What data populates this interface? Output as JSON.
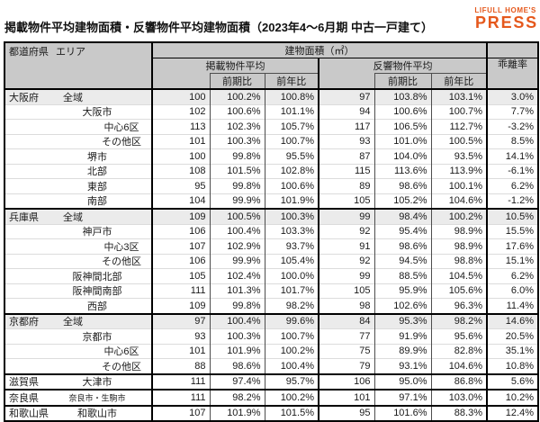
{
  "page": {
    "title": "掲載物件平均建物面積・反響物件平均建物面積（2023年4～6月期 中古一戸建て）",
    "logo": {
      "top": "LIFULL HOME'S",
      "bottom": "PRESS",
      "color": "#E5581C"
    }
  },
  "colors": {
    "header_bg": "#c9c9c9",
    "highlight_row_bg": "#ebebeb",
    "border_major": "#000000",
    "border_minor": "#4d4d4d",
    "row_divider": "#dcdcdc",
    "accent_orange": "#E5581C"
  },
  "chart_data": {
    "type": "table",
    "title": "掲載物件平均建物面積・反響物件平均建物面積（2023年4～6月期 中古一戸建て）",
    "headers": {
      "pref": "都道府県",
      "area": "エリア",
      "unit": "建物面積（㎡）",
      "listed_group": "掲載物件平均",
      "inquiry_group": "反響物件平均",
      "qoq": "前期比",
      "yoy": "前年比",
      "divergence": "乖離率"
    },
    "rows": [
      {
        "pref": "大阪府",
        "area": "全域",
        "indent": 0,
        "highlight": true,
        "group_start": true,
        "listed": "100",
        "listed_qoq": "100.2%",
        "listed_yoy": "100.8%",
        "inquiry": "97",
        "inquiry_qoq": "103.8%",
        "inquiry_yoy": "103.1%",
        "divergence": "3.0%"
      },
      {
        "pref": "",
        "area": "大阪市",
        "indent": 1,
        "highlight": false,
        "group_start": false,
        "listed": "102",
        "listed_qoq": "100.6%",
        "listed_yoy": "101.1%",
        "inquiry": "94",
        "inquiry_qoq": "100.6%",
        "inquiry_yoy": "100.7%",
        "divergence": "7.7%"
      },
      {
        "pref": "",
        "area": "中心6区",
        "indent": 2,
        "highlight": false,
        "group_start": false,
        "listed": "113",
        "listed_qoq": "102.3%",
        "listed_yoy": "105.7%",
        "inquiry": "117",
        "inquiry_qoq": "106.5%",
        "inquiry_yoy": "112.7%",
        "divergence": "-3.2%"
      },
      {
        "pref": "",
        "area": "その他区",
        "indent": 2,
        "highlight": false,
        "group_start": false,
        "listed": "101",
        "listed_qoq": "100.3%",
        "listed_yoy": "100.7%",
        "inquiry": "93",
        "inquiry_qoq": "101.0%",
        "inquiry_yoy": "100.5%",
        "divergence": "8.5%"
      },
      {
        "pref": "",
        "area": "堺市",
        "indent": 1,
        "highlight": false,
        "group_start": false,
        "listed": "100",
        "listed_qoq": "99.8%",
        "listed_yoy": "95.5%",
        "inquiry": "87",
        "inquiry_qoq": "104.0%",
        "inquiry_yoy": "93.5%",
        "divergence": "14.1%"
      },
      {
        "pref": "",
        "area": "北部",
        "indent": 1,
        "highlight": false,
        "group_start": false,
        "listed": "108",
        "listed_qoq": "101.5%",
        "listed_yoy": "102.8%",
        "inquiry": "115",
        "inquiry_qoq": "113.6%",
        "inquiry_yoy": "113.9%",
        "divergence": "-6.1%"
      },
      {
        "pref": "",
        "area": "東部",
        "indent": 1,
        "highlight": false,
        "group_start": false,
        "listed": "95",
        "listed_qoq": "99.8%",
        "listed_yoy": "100.6%",
        "inquiry": "89",
        "inquiry_qoq": "98.6%",
        "inquiry_yoy": "100.1%",
        "divergence": "6.2%"
      },
      {
        "pref": "",
        "area": "南部",
        "indent": 1,
        "highlight": false,
        "group_start": false,
        "listed": "104",
        "listed_qoq": "99.9%",
        "listed_yoy": "101.9%",
        "inquiry": "105",
        "inquiry_qoq": "105.2%",
        "inquiry_yoy": "104.6%",
        "divergence": "-1.2%"
      },
      {
        "pref": "兵庫県",
        "area": "全域",
        "indent": 0,
        "highlight": true,
        "group_start": true,
        "listed": "109",
        "listed_qoq": "100.5%",
        "listed_yoy": "100.3%",
        "inquiry": "99",
        "inquiry_qoq": "98.4%",
        "inquiry_yoy": "100.2%",
        "divergence": "10.5%"
      },
      {
        "pref": "",
        "area": "神戸市",
        "indent": 1,
        "highlight": false,
        "group_start": false,
        "listed": "106",
        "listed_qoq": "100.4%",
        "listed_yoy": "103.3%",
        "inquiry": "92",
        "inquiry_qoq": "95.4%",
        "inquiry_yoy": "98.9%",
        "divergence": "15.5%"
      },
      {
        "pref": "",
        "area": "中心3区",
        "indent": 2,
        "highlight": false,
        "group_start": false,
        "listed": "107",
        "listed_qoq": "102.9%",
        "listed_yoy": "93.7%",
        "inquiry": "91",
        "inquiry_qoq": "98.6%",
        "inquiry_yoy": "98.9%",
        "divergence": "17.6%"
      },
      {
        "pref": "",
        "area": "その他区",
        "indent": 2,
        "highlight": false,
        "group_start": false,
        "listed": "106",
        "listed_qoq": "99.9%",
        "listed_yoy": "105.4%",
        "inquiry": "92",
        "inquiry_qoq": "94.5%",
        "inquiry_yoy": "98.8%",
        "divergence": "15.1%"
      },
      {
        "pref": "",
        "area": "阪神間北部",
        "indent": 1,
        "highlight": false,
        "group_start": false,
        "listed": "105",
        "listed_qoq": "102.4%",
        "listed_yoy": "100.0%",
        "inquiry": "99",
        "inquiry_qoq": "88.5%",
        "inquiry_yoy": "104.5%",
        "divergence": "6.2%"
      },
      {
        "pref": "",
        "area": "阪神間南部",
        "indent": 1,
        "highlight": false,
        "group_start": false,
        "listed": "111",
        "listed_qoq": "101.3%",
        "listed_yoy": "101.7%",
        "inquiry": "105",
        "inquiry_qoq": "95.9%",
        "inquiry_yoy": "105.6%",
        "divergence": "6.0%"
      },
      {
        "pref": "",
        "area": "西部",
        "indent": 1,
        "highlight": false,
        "group_start": false,
        "listed": "109",
        "listed_qoq": "99.8%",
        "listed_yoy": "98.2%",
        "inquiry": "98",
        "inquiry_qoq": "102.6%",
        "inquiry_yoy": "96.3%",
        "divergence": "11.4%"
      },
      {
        "pref": "京都府",
        "area": "全域",
        "indent": 0,
        "highlight": true,
        "group_start": true,
        "listed": "97",
        "listed_qoq": "100.4%",
        "listed_yoy": "99.6%",
        "inquiry": "84",
        "inquiry_qoq": "95.3%",
        "inquiry_yoy": "98.2%",
        "divergence": "14.6%"
      },
      {
        "pref": "",
        "area": "京都市",
        "indent": 1,
        "highlight": false,
        "group_start": false,
        "listed": "93",
        "listed_qoq": "100.3%",
        "listed_yoy": "100.7%",
        "inquiry": "77",
        "inquiry_qoq": "91.9%",
        "inquiry_yoy": "95.6%",
        "divergence": "20.5%"
      },
      {
        "pref": "",
        "area": "中心6区",
        "indent": 2,
        "highlight": false,
        "group_start": false,
        "listed": "101",
        "listed_qoq": "101.9%",
        "listed_yoy": "100.2%",
        "inquiry": "75",
        "inquiry_qoq": "89.9%",
        "inquiry_yoy": "82.8%",
        "divergence": "35.1%"
      },
      {
        "pref": "",
        "area": "その他区",
        "indent": 2,
        "highlight": false,
        "group_start": false,
        "listed": "88",
        "listed_qoq": "98.6%",
        "listed_yoy": "100.4%",
        "inquiry": "79",
        "inquiry_qoq": "93.1%",
        "inquiry_yoy": "104.6%",
        "divergence": "10.8%"
      },
      {
        "pref": "滋賀県",
        "area": "大津市",
        "indent": 1,
        "highlight": false,
        "group_start": true,
        "listed": "111",
        "listed_qoq": "97.4%",
        "listed_yoy": "95.7%",
        "inquiry": "106",
        "inquiry_qoq": "95.0%",
        "inquiry_yoy": "86.8%",
        "divergence": "5.6%"
      },
      {
        "pref": "奈良県",
        "area": "奈良市・生駒市",
        "indent": 1,
        "highlight": false,
        "group_start": true,
        "listed": "111",
        "listed_qoq": "98.2%",
        "listed_yoy": "100.2%",
        "inquiry": "101",
        "inquiry_qoq": "97.1%",
        "inquiry_yoy": "103.0%",
        "divergence": "10.2%"
      },
      {
        "pref": "和歌山県",
        "area": "和歌山市",
        "indent": 1,
        "highlight": false,
        "group_start": true,
        "listed": "107",
        "listed_qoq": "101.9%",
        "listed_yoy": "101.5%",
        "inquiry": "95",
        "inquiry_qoq": "101.6%",
        "inquiry_yoy": "88.3%",
        "divergence": "12.4%"
      }
    ]
  }
}
